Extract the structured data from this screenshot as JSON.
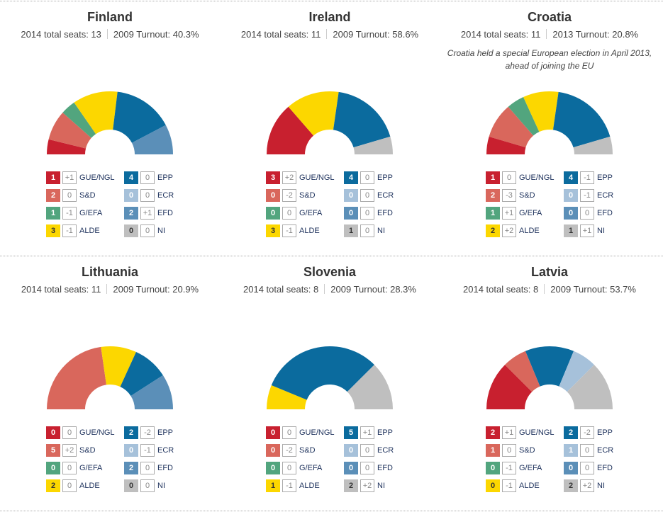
{
  "parties": [
    {
      "key": "GUE",
      "label": "GUE/NGL",
      "color": "#c8202f"
    },
    {
      "key": "SD",
      "label": "S&D",
      "color": "#d9675c"
    },
    {
      "key": "GEFA",
      "label": "G/EFA",
      "color": "#52a57e"
    },
    {
      "key": "ALDE",
      "label": "ALDE",
      "color": "#fcd700"
    },
    {
      "key": "EPP",
      "label": "EPP",
      "color": "#0b6b9e"
    },
    {
      "key": "ECR",
      "label": "ECR",
      "color": "#a6c1da"
    },
    {
      "key": "EFD",
      "label": "EFD",
      "color": "#5b8fb8"
    },
    {
      "key": "NI",
      "label": "NI",
      "color": "#bfbfbf"
    }
  ],
  "countries": [
    {
      "name": "Finland",
      "seats_label": "2014 total seats: 13",
      "turnout_label": "2009 Turnout: 40.3%",
      "note": "",
      "seats": [
        1,
        2,
        1,
        3,
        4,
        0,
        2,
        0
      ],
      "changes": [
        "+1",
        "0",
        "-1",
        "-1",
        "0",
        "0",
        "+1",
        "0"
      ]
    },
    {
      "name": "Ireland",
      "seats_label": "2014 total seats: 11",
      "turnout_label": "2009 Turnout: 58.6%",
      "note": "",
      "seats": [
        3,
        0,
        0,
        3,
        4,
        0,
        0,
        1
      ],
      "changes": [
        "+2",
        "-2",
        "0",
        "-1",
        "0",
        "0",
        "0",
        "0"
      ]
    },
    {
      "name": "Croatia",
      "seats_label": "2014 total seats: 11",
      "turnout_label": "2013 Turnout: 20.8%",
      "note": "Croatia held a special European election in April 2013, ahead of joining the EU",
      "seats": [
        1,
        2,
        1,
        2,
        4,
        0,
        0,
        1
      ],
      "changes": [
        "0",
        "-3",
        "+1",
        "+2",
        "-1",
        "-1",
        "0",
        "+1"
      ]
    },
    {
      "name": "Lithuania",
      "seats_label": "2014 total seats: 11",
      "turnout_label": "2009 Turnout: 20.9%",
      "note": "",
      "seats": [
        0,
        5,
        0,
        2,
        2,
        0,
        2,
        0
      ],
      "changes": [
        "0",
        "+2",
        "0",
        "0",
        "-2",
        "-1",
        "0",
        "0"
      ]
    },
    {
      "name": "Slovenia",
      "seats_label": "2014 total seats: 8",
      "turnout_label": "2009 Turnout: 28.3%",
      "note": "",
      "seats": [
        0,
        0,
        0,
        1,
        5,
        0,
        0,
        2
      ],
      "changes": [
        "0",
        "-2",
        "0",
        "-1",
        "+1",
        "0",
        "0",
        "+2"
      ]
    },
    {
      "name": "Latvia",
      "seats_label": "2014 total seats: 8",
      "turnout_label": "2009 Turnout: 53.7%",
      "note": "",
      "seats": [
        2,
        1,
        0,
        0,
        2,
        1,
        0,
        2
      ],
      "changes": [
        "+1",
        "0",
        "-1",
        "-1",
        "-2",
        "0",
        "0",
        "+2"
      ]
    }
  ],
  "chart_data": [
    {
      "type": "pie",
      "title": "Finland",
      "categories": [
        "GUE/NGL",
        "S&D",
        "G/EFA",
        "ALDE",
        "EPP",
        "ECR",
        "EFD",
        "NI"
      ],
      "values": [
        1,
        2,
        1,
        3,
        4,
        0,
        2,
        0
      ]
    },
    {
      "type": "pie",
      "title": "Ireland",
      "categories": [
        "GUE/NGL",
        "S&D",
        "G/EFA",
        "ALDE",
        "EPP",
        "ECR",
        "EFD",
        "NI"
      ],
      "values": [
        3,
        0,
        0,
        3,
        4,
        0,
        0,
        1
      ]
    },
    {
      "type": "pie",
      "title": "Croatia",
      "categories": [
        "GUE/NGL",
        "S&D",
        "G/EFA",
        "ALDE",
        "EPP",
        "ECR",
        "EFD",
        "NI"
      ],
      "values": [
        1,
        2,
        1,
        2,
        4,
        0,
        0,
        1
      ]
    },
    {
      "type": "pie",
      "title": "Lithuania",
      "categories": [
        "GUE/NGL",
        "S&D",
        "G/EFA",
        "ALDE",
        "EPP",
        "ECR",
        "EFD",
        "NI"
      ],
      "values": [
        0,
        5,
        0,
        2,
        2,
        0,
        2,
        0
      ]
    },
    {
      "type": "pie",
      "title": "Slovenia",
      "categories": [
        "GUE/NGL",
        "S&D",
        "G/EFA",
        "ALDE",
        "EPP",
        "ECR",
        "EFD",
        "NI"
      ],
      "values": [
        0,
        0,
        0,
        1,
        5,
        0,
        0,
        2
      ]
    },
    {
      "type": "pie",
      "title": "Latvia",
      "categories": [
        "GUE/NGL",
        "S&D",
        "G/EFA",
        "ALDE",
        "EPP",
        "ECR",
        "EFD",
        "NI"
      ],
      "values": [
        2,
        1,
        0,
        0,
        2,
        1,
        0,
        2
      ]
    }
  ]
}
